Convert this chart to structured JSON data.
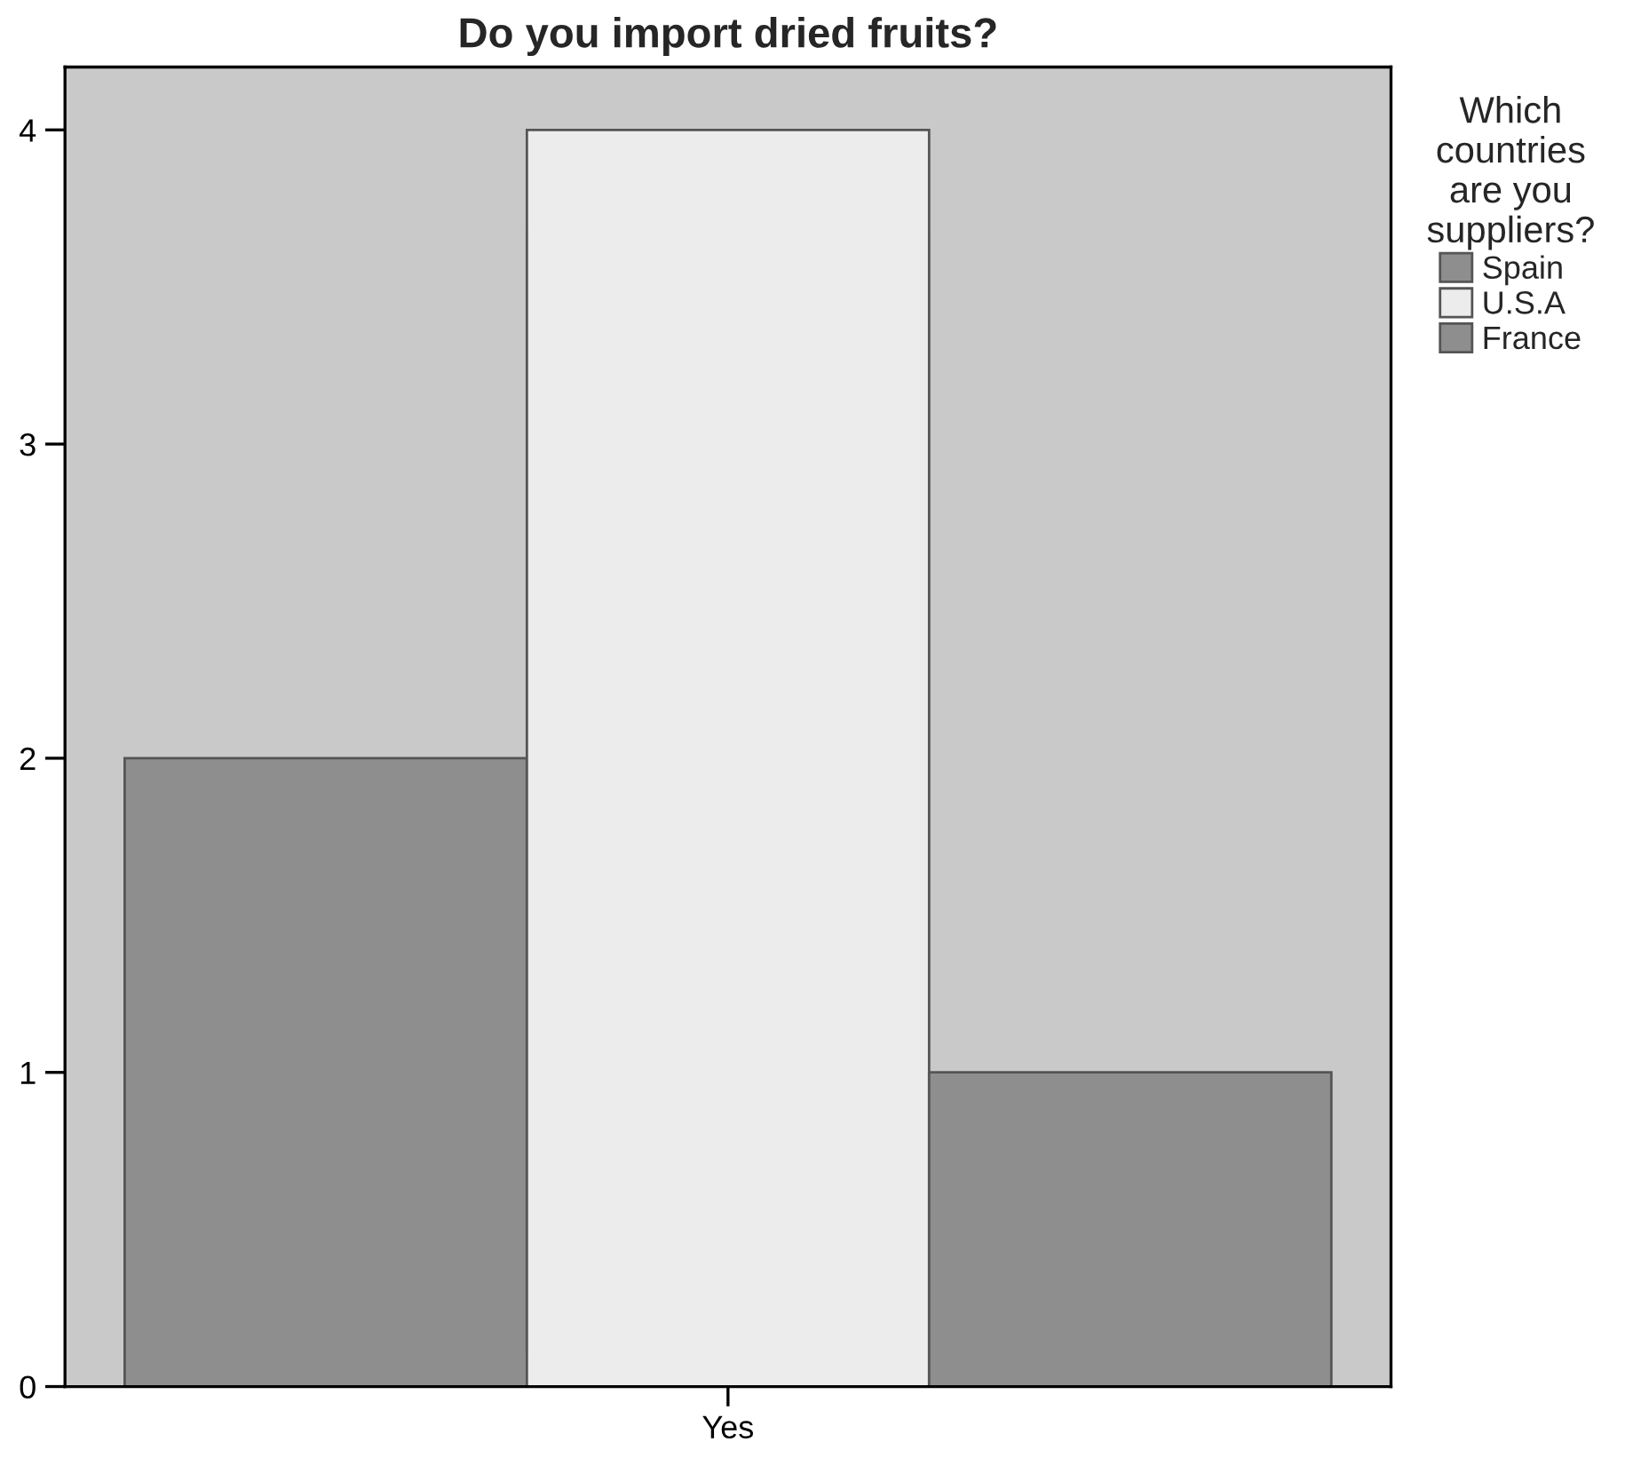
{
  "chart_data": {
    "type": "bar",
    "title": "Do you import dried fruits?",
    "categories": [
      "Yes"
    ],
    "series": [
      {
        "name": "Spain",
        "color": "#8e8e8e",
        "values": [
          2
        ]
      },
      {
        "name": "U.S.A",
        "color": "#ececec",
        "values": [
          4
        ]
      },
      {
        "name": "France",
        "color": "#8e8e8e",
        "values": [
          1
        ]
      }
    ],
    "legend_title": "Which\ncountries\nare you\nsuppliers?",
    "legend": "right",
    "ylim": [
      0,
      4.2
    ],
    "yticks": [
      0,
      1,
      2,
      3,
      4
    ]
  }
}
